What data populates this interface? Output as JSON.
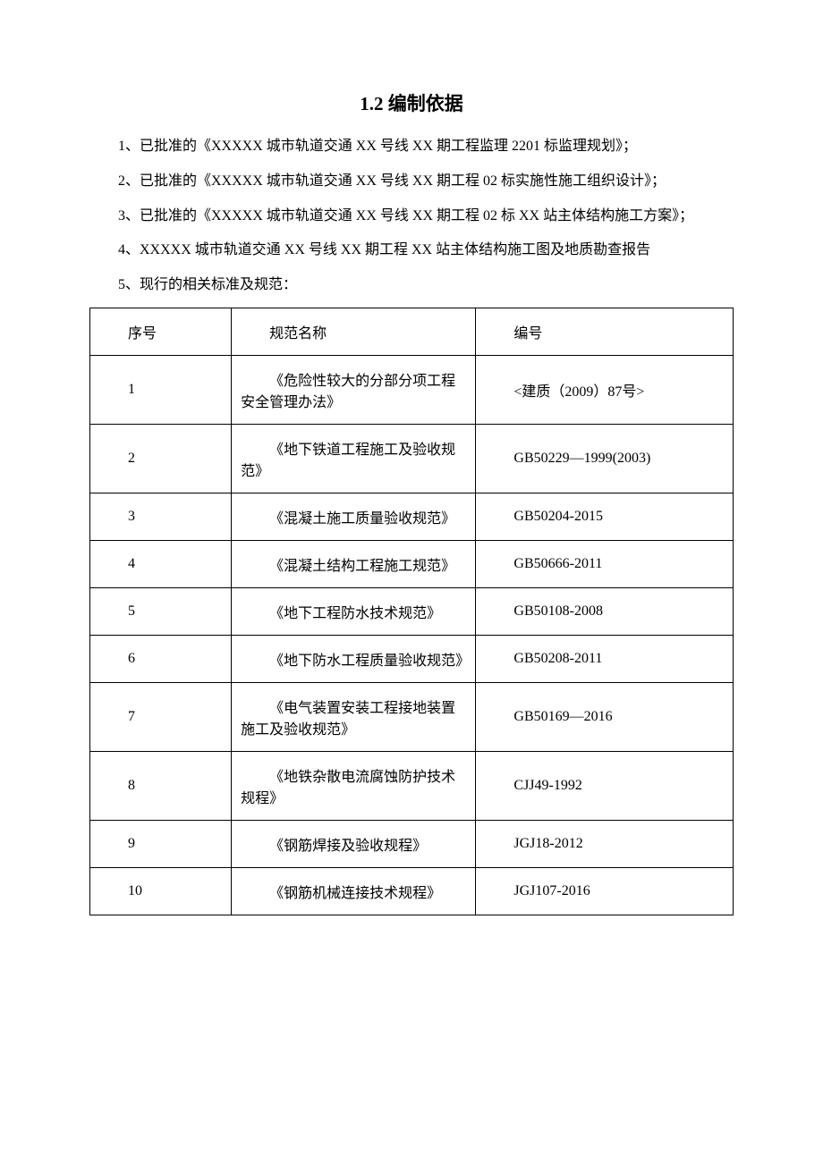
{
  "section": {
    "title": "1.2 编制依据"
  },
  "paragraphs": {
    "p1": "1、已批准的《XXXXX 城市轨道交通 XX 号线 XX 期工程监理 2201 标监理规划》；",
    "p2": "2、已批准的《XXXXX 城市轨道交通 XX 号线 XX 期工程 02 标实施性施工组织设计》；",
    "p3": "3、已批准的《XXXXX 城市轨道交通 XX 号线 XX 期工程 02 标 XX 站主体结构施工方案》；",
    "p4": "4、XXXXX 城市轨道交通 XX 号线 XX 期工程 XX 站主体结构施工图及地质勘查报告",
    "p5": "5、现行的相关标准及规范："
  },
  "table": {
    "headers": {
      "seq": "序号",
      "name": "规范名称",
      "code": "编号"
    },
    "rows": [
      {
        "seq": "1",
        "name": "《危险性较大的分部分项工程安全管理办法》",
        "code": "<建质（2009）87号>"
      },
      {
        "seq": "2",
        "name": "《地下铁道工程施工及验收规范》",
        "code": "GB50229—1999(2003)"
      },
      {
        "seq": "3",
        "name": "《混凝土施工质量验收规范》",
        "code": "GB50204-2015"
      },
      {
        "seq": "4",
        "name": "《混凝土结构工程施工规范》",
        "code": "GB50666-2011"
      },
      {
        "seq": "5",
        "name": "《地下工程防水技术规范》",
        "code": "GB50108-2008"
      },
      {
        "seq": "6",
        "name": "《地下防水工程质量验收规范》",
        "code": "GB50208-2011"
      },
      {
        "seq": "7",
        "name": "《电气装置安装工程接地装置施工及验收规范》",
        "code": "GB50169—2016"
      },
      {
        "seq": "8",
        "name": "《地铁杂散电流腐蚀防护技术规程》",
        "code": "CJJ49-1992"
      },
      {
        "seq": "9",
        "name": "《钢筋焊接及验收规程》",
        "code": "JGJ18-2012"
      },
      {
        "seq": "10",
        "name": "《钢筋机械连接技术规程》",
        "code": "JGJ107-2016"
      }
    ]
  },
  "style": {
    "background_color": "#ffffff",
    "text_color": "#000000",
    "border_color": "#000000",
    "title_fontsize": 21,
    "body_fontsize": 16
  }
}
